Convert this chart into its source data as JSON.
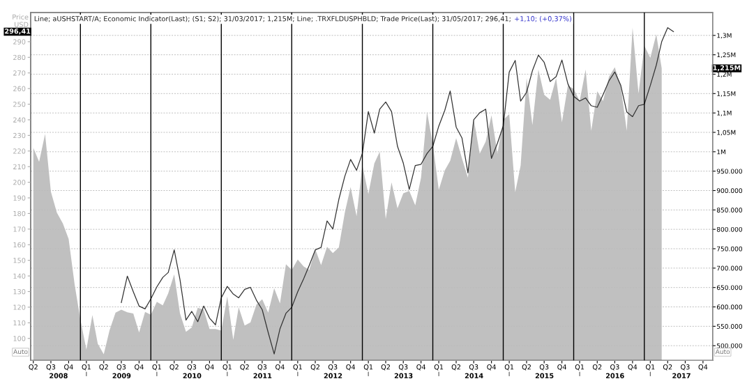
{
  "chart_data": {
    "type": "line",
    "ylabel": "Price USD",
    "xlim": [
      "2008-03-18",
      "2017-11-20"
    ],
    "xticks": [
      {
        "value": "2008-04-01",
        "label": "Q2"
      },
      {
        "value": "2008-07-01",
        "label": "Q3"
      },
      {
        "value": "2008-10-01",
        "label": "Q4"
      },
      {
        "value": "2009-01-01",
        "label": "Q1"
      },
      {
        "value": "2009-04-01",
        "label": "Q2"
      },
      {
        "value": "2009-07-01",
        "label": "Q3"
      },
      {
        "value": "2009-10-01",
        "label": "Q4"
      },
      {
        "value": "2010-01-01",
        "label": "Q1"
      },
      {
        "value": "2010-04-01",
        "label": "Q2"
      },
      {
        "value": "2010-07-01",
        "label": "Q3"
      },
      {
        "value": "2010-10-01",
        "label": "Q4"
      },
      {
        "value": "2011-01-01",
        "label": "Q1"
      },
      {
        "value": "2011-04-01",
        "label": "Q2"
      },
      {
        "value": "2011-07-01",
        "label": "Q3"
      },
      {
        "value": "2011-10-01",
        "label": "Q4"
      },
      {
        "value": "2012-01-01",
        "label": "Q1"
      },
      {
        "value": "2012-04-01",
        "label": "Q2"
      },
      {
        "value": "2012-07-01",
        "label": "Q3"
      },
      {
        "value": "2012-10-01",
        "label": "Q4"
      },
      {
        "value": "2013-01-01",
        "label": "Q1"
      },
      {
        "value": "2013-04-01",
        "label": "Q2"
      },
      {
        "value": "2013-07-01",
        "label": "Q3"
      },
      {
        "value": "2013-10-01",
        "label": "Q4"
      },
      {
        "value": "2014-01-01",
        "label": "Q1"
      },
      {
        "value": "2014-04-01",
        "label": "Q2"
      },
      {
        "value": "2014-07-01",
        "label": "Q3"
      },
      {
        "value": "2014-10-01",
        "label": "Q4"
      },
      {
        "value": "2015-01-01",
        "label": "Q1"
      },
      {
        "value": "2015-04-01",
        "label": "Q2"
      },
      {
        "value": "2015-07-01",
        "label": "Q3"
      },
      {
        "value": "2015-10-01",
        "label": "Q4"
      },
      {
        "value": "2016-01-01",
        "label": "Q1"
      },
      {
        "value": "2016-04-01",
        "label": "Q2"
      },
      {
        "value": "2016-07-01",
        "label": "Q3"
      },
      {
        "value": "2016-10-01",
        "label": "Q4"
      },
      {
        "value": "2017-01-01",
        "label": "Q1"
      },
      {
        "value": "2017-04-01",
        "label": "Q2"
      },
      {
        "value": "2017-07-01",
        "label": "Q3"
      },
      {
        "value": "2017-10-01",
        "label": "Q4"
      }
    ],
    "ylim": [
      85.9,
      308.7
    ],
    "yticks": [
      100,
      110,
      120,
      130,
      140,
      150,
      160,
      170,
      180,
      190,
      200,
      210,
      220,
      230,
      240,
      250,
      260,
      270,
      280,
      290
    ],
    "y2lim": [
      462000,
      1359000
    ],
    "y2ticks": [
      {
        "value": 500000,
        "label": "500.000"
      },
      {
        "value": 550000,
        "label": "550.000"
      },
      {
        "value": 600000,
        "label": "600.000"
      },
      {
        "value": 650000,
        "label": "650.000"
      },
      {
        "value": 700000,
        "label": "700.000"
      },
      {
        "value": 750000,
        "label": "750.000"
      },
      {
        "value": 800000,
        "label": "800.000"
      },
      {
        "value": 850000,
        "label": "850.000"
      },
      {
        "value": 900000,
        "label": "900.000"
      },
      {
        "value": 950000,
        "label": "950.000"
      },
      {
        "value": 1000000,
        "label": "1M"
      },
      {
        "value": 1050000,
        "label": "1,05M"
      },
      {
        "value": 1100000,
        "label": "1,1M"
      },
      {
        "value": 1150000,
        "label": "1,15M"
      },
      {
        "value": 1200000,
        "label": "1,2M"
      },
      {
        "value": 1250000,
        "label": "1,25M"
      },
      {
        "value": 1300000,
        "label": "1,3M"
      }
    ],
    "grid": "y",
    "series": [
      {
        "type": "area",
        "axis": "y2",
        "color": "#c0c0c0",
        "x": [
          "2008-04-01",
          "2008-05-01",
          "2008-06-01",
          "2008-07-01",
          "2008-08-01",
          "2008-09-01",
          "2008-10-01",
          "2008-11-01",
          "2008-12-01",
          "2009-01-01",
          "2009-02-01",
          "2009-03-01",
          "2009-04-01",
          "2009-05-01",
          "2009-06-01",
          "2009-07-01",
          "2009-08-01",
          "2009-09-01",
          "2009-10-01",
          "2009-11-01",
          "2009-12-01",
          "2010-01-01",
          "2010-02-01",
          "2010-03-01",
          "2010-04-01",
          "2010-05-01",
          "2010-06-01",
          "2010-07-01",
          "2010-08-01",
          "2010-09-01",
          "2010-10-01",
          "2010-11-01",
          "2010-12-01",
          "2011-01-01",
          "2011-02-01",
          "2011-03-01",
          "2011-04-01",
          "2011-05-01",
          "2011-06-01",
          "2011-07-01",
          "2011-08-01",
          "2011-09-01",
          "2011-10-01",
          "2011-11-01",
          "2011-12-01",
          "2012-01-01",
          "2012-02-01",
          "2012-03-01",
          "2012-04-01",
          "2012-05-01",
          "2012-06-01",
          "2012-07-01",
          "2012-08-01",
          "2012-09-01",
          "2012-10-01",
          "2012-11-01",
          "2012-12-01",
          "2013-01-01",
          "2013-02-01",
          "2013-03-01",
          "2013-04-01",
          "2013-05-01",
          "2013-06-01",
          "2013-07-01",
          "2013-08-01",
          "2013-09-01",
          "2013-10-01",
          "2013-11-01",
          "2013-12-01",
          "2014-01-01",
          "2014-02-01",
          "2014-03-01",
          "2014-04-01",
          "2014-05-01",
          "2014-06-01",
          "2014-07-01",
          "2014-08-01",
          "2014-09-01",
          "2014-10-01",
          "2014-11-01",
          "2014-12-01",
          "2015-01-01",
          "2015-02-01",
          "2015-03-01",
          "2015-04-01",
          "2015-05-01",
          "2015-06-01",
          "2015-07-01",
          "2015-08-01",
          "2015-09-01",
          "2015-10-01",
          "2015-11-01",
          "2015-12-01",
          "2016-01-01",
          "2016-02-01",
          "2016-03-01",
          "2016-04-01",
          "2016-05-01",
          "2016-06-01",
          "2016-07-01",
          "2016-08-01",
          "2016-09-01",
          "2016-10-01",
          "2016-11-01",
          "2016-12-01",
          "2017-01-01",
          "2017-02-01",
          "2017-03-01"
        ],
        "values": [
          1010000,
          974000,
          1046000,
          897000,
          843000,
          815000,
          775000,
          658000,
          567000,
          490000,
          579000,
          505000,
          478000,
          540000,
          585000,
          593000,
          586000,
          583000,
          534000,
          587000,
          580000,
          613000,
          604000,
          635000,
          684000,
          583000,
          536000,
          547000,
          598000,
          593000,
          543000,
          543000,
          539000,
          627000,
          515000,
          599000,
          552000,
          560000,
          606000,
          620000,
          585000,
          648000,
          609000,
          710000,
          695000,
          722000,
          704000,
          695000,
          749000,
          708000,
          755000,
          739000,
          753000,
          843000,
          909000,
          834000,
          965000,
          891000,
          970000,
          1000000,
          827000,
          921000,
          854000,
          893000,
          899000,
          862000,
          933000,
          1103000,
          1020000,
          902000,
          952000,
          977000,
          1035000,
          983000,
          933000,
          1085000,
          995000,
          1026000,
          1094000,
          995000,
          1082000,
          1097000,
          896000,
          964000,
          1190000,
          1069000,
          1212000,
          1147000,
          1134000,
          1190000,
          1076000,
          1171000,
          1162000,
          1131000,
          1212000,
          1054000,
          1156000,
          1131000,
          1193000,
          1218000,
          1168000,
          1054000,
          1320000,
          1150000,
          1273000,
          1242000,
          1303000,
          1215000
        ]
      },
      {
        "color": "#333333",
        "x": [
          "2009-07-01",
          "2009-08-01",
          "2009-09-01",
          "2009-10-01",
          "2009-11-01",
          "2009-12-01",
          "2010-01-01",
          "2010-02-01",
          "2010-03-01",
          "2010-04-01",
          "2010-05-01",
          "2010-06-01",
          "2010-07-01",
          "2010-08-01",
          "2010-09-01",
          "2010-10-01",
          "2010-11-01",
          "2010-12-01",
          "2011-01-01",
          "2011-02-01",
          "2011-03-01",
          "2011-04-01",
          "2011-05-01",
          "2011-06-01",
          "2011-07-01",
          "2011-08-01",
          "2011-09-01",
          "2011-10-01",
          "2011-11-01",
          "2011-12-01",
          "2012-01-01",
          "2012-02-01",
          "2012-03-01",
          "2012-04-01",
          "2012-05-01",
          "2012-06-01",
          "2012-07-01",
          "2012-08-01",
          "2012-09-01",
          "2012-10-01",
          "2012-11-01",
          "2012-12-01",
          "2013-01-01",
          "2013-02-01",
          "2013-03-01",
          "2013-04-01",
          "2013-05-01",
          "2013-06-01",
          "2013-07-01",
          "2013-08-01",
          "2013-09-01",
          "2013-10-01",
          "2013-11-01",
          "2013-12-01",
          "2014-01-01",
          "2014-02-01",
          "2014-03-01",
          "2014-04-01",
          "2014-05-01",
          "2014-06-01",
          "2014-07-01",
          "2014-08-01",
          "2014-09-01",
          "2014-10-01",
          "2014-11-01",
          "2014-12-01",
          "2015-01-01",
          "2015-02-01",
          "2015-03-01",
          "2015-04-01",
          "2015-05-01",
          "2015-06-01",
          "2015-07-01",
          "2015-08-01",
          "2015-09-01",
          "2015-10-01",
          "2015-11-01",
          "2015-12-01",
          "2016-01-01",
          "2016-02-01",
          "2016-03-01",
          "2016-04-01",
          "2016-05-01",
          "2016-06-01",
          "2016-07-01",
          "2016-08-01",
          "2016-09-01",
          "2016-10-01",
          "2016-11-01",
          "2016-12-01",
          "2017-01-01",
          "2017-02-01",
          "2017-03-01",
          "2017-04-01",
          "2017-05-01"
        ],
        "values": [
          123,
          139.9,
          129.9,
          120.7,
          118.9,
          125.3,
          133,
          139.1,
          142.2,
          156.7,
          137.6,
          111.8,
          117.3,
          110.7,
          120.7,
          113,
          108.7,
          126,
          133.3,
          128.4,
          126,
          131.4,
          132.7,
          124.5,
          118.4,
          103.8,
          90,
          106.1,
          116.1,
          119.9,
          129.9,
          138.3,
          146.8,
          156.7,
          158.3,
          175.2,
          170.1,
          189,
          203.8,
          214.6,
          207.7,
          218.5,
          245.3,
          231.5,
          246.8,
          251.4,
          245.3,
          223,
          212.3,
          195.4,
          210.7,
          211.5,
          218.4,
          223,
          236,
          246,
          258.4,
          235.3,
          228.4,
          206,
          240,
          244.5,
          246.8,
          215.3,
          225,
          236,
          270.6,
          278,
          252,
          257.6,
          271.4,
          281.4,
          276.8,
          264.5,
          267.6,
          278.3,
          263,
          255,
          252,
          254,
          249,
          248,
          256,
          265,
          270.6,
          262,
          245,
          242,
          249,
          250,
          262,
          275,
          290,
          299,
          296.41
        ]
      }
    ],
    "ref_lines": [
      {
        "axis": "x",
        "value": "2008-12-01",
        "color": "#000000"
      },
      {
        "axis": "x",
        "value": "2009-12-01",
        "color": "#000000"
      },
      {
        "axis": "x",
        "value": "2010-12-01",
        "color": "#000000"
      },
      {
        "axis": "x",
        "value": "2011-12-01",
        "color": "#000000"
      },
      {
        "axis": "x",
        "value": "2012-12-01",
        "color": "#000000"
      },
      {
        "axis": "x",
        "value": "2013-12-01",
        "color": "#000000"
      },
      {
        "axis": "x",
        "value": "2014-12-01",
        "color": "#000000"
      },
      {
        "axis": "x",
        "value": "2015-12-01",
        "color": "#000000"
      },
      {
        "axis": "x",
        "value": "2016-12-01",
        "color": "#000000"
      }
    ],
    "annotations": [
      "Line; aUSHSTART/A; Economic Indicator(Last); (S1; S2); 31/03/2017; 1,215M; Line; .TRXFLDUSPHBLD; Trade Price(Last); 31/05/2017; 296,41;",
      "+1,10; (+0,37%)",
      "296,41",
      "1,215M",
      "2008",
      "2009",
      "2010",
      "2011",
      "2012",
      "2013",
      "2014",
      "2015",
      "2016",
      "2017",
      "Auto",
      "Auto"
    ]
  }
}
